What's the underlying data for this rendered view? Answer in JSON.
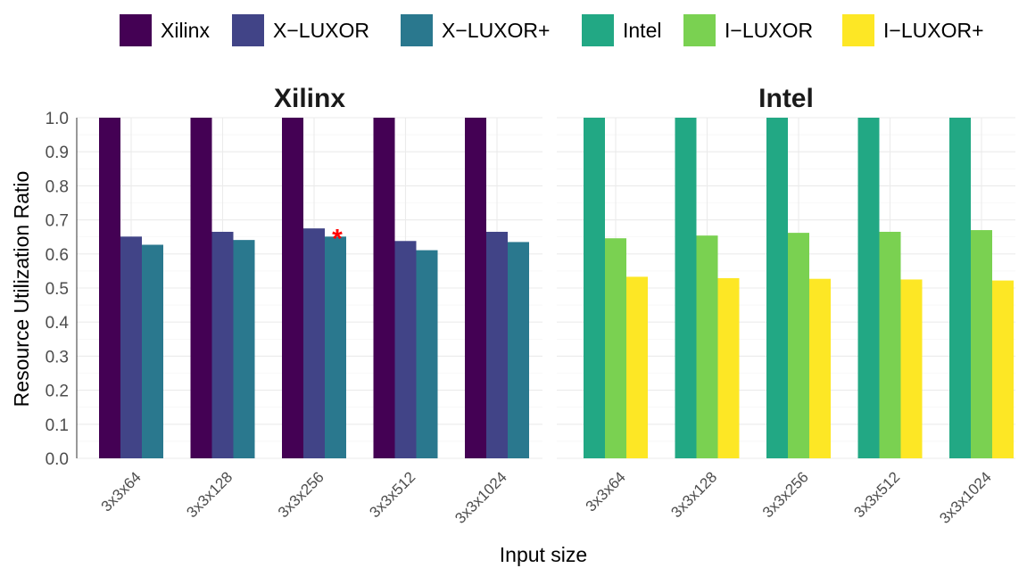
{
  "chart_data": {
    "type": "bar",
    "ylabel": "Resource Utilization Ratio",
    "xlabel": "Input size",
    "ylim": [
      0,
      1.0
    ],
    "yticks": [
      "0.0",
      "0.1",
      "0.2",
      "0.3",
      "0.4",
      "0.5",
      "0.6",
      "0.7",
      "0.8",
      "0.9",
      "1.0"
    ],
    "grid": true,
    "legend_position": "top",
    "legend": [
      {
        "name": "Xilinx",
        "color": "#440154"
      },
      {
        "name": "X−LUXOR",
        "color": "#414487"
      },
      {
        "name": "X−LUXOR+",
        "color": "#2A788E"
      },
      {
        "name": "Intel",
        "color": "#22A884"
      },
      {
        "name": "I−LUXOR",
        "color": "#7AD151"
      },
      {
        "name": "I−LUXOR+",
        "color": "#FDE725"
      }
    ],
    "facets": [
      {
        "title": "Xilinx",
        "categories": [
          "3x3x64",
          "3x3x128",
          "3x3x256",
          "3x3x512",
          "3x3x1024"
        ],
        "series": [
          {
            "name": "Xilinx",
            "color": "#440154",
            "values": [
              1.0,
              1.0,
              1.0,
              1.0,
              1.0
            ]
          },
          {
            "name": "X−LUXOR",
            "color": "#414487",
            "values": [
              0.651,
              0.665,
              0.675,
              0.638,
              0.665
            ]
          },
          {
            "name": "X−LUXOR+",
            "color": "#2A788E",
            "values": [
              0.627,
              0.641,
              0.651,
              0.611,
              0.635
            ]
          }
        ],
        "annotation": {
          "text": "*",
          "category": "3x3x256",
          "series": "X−LUXOR+"
        }
      },
      {
        "title": "Intel",
        "categories": [
          "3x3x64",
          "3x3x128",
          "3x3x256",
          "3x3x512",
          "3x3x1024"
        ],
        "series": [
          {
            "name": "Intel",
            "color": "#22A884",
            "values": [
              1.0,
              1.0,
              1.0,
              1.0,
              1.0
            ]
          },
          {
            "name": "I−LUXOR",
            "color": "#7AD151",
            "values": [
              0.646,
              0.654,
              0.662,
              0.665,
              0.67
            ]
          },
          {
            "name": "I−LUXOR+",
            "color": "#FDE725",
            "values": [
              0.533,
              0.529,
              0.527,
              0.525,
              0.522
            ]
          }
        ]
      }
    ]
  }
}
